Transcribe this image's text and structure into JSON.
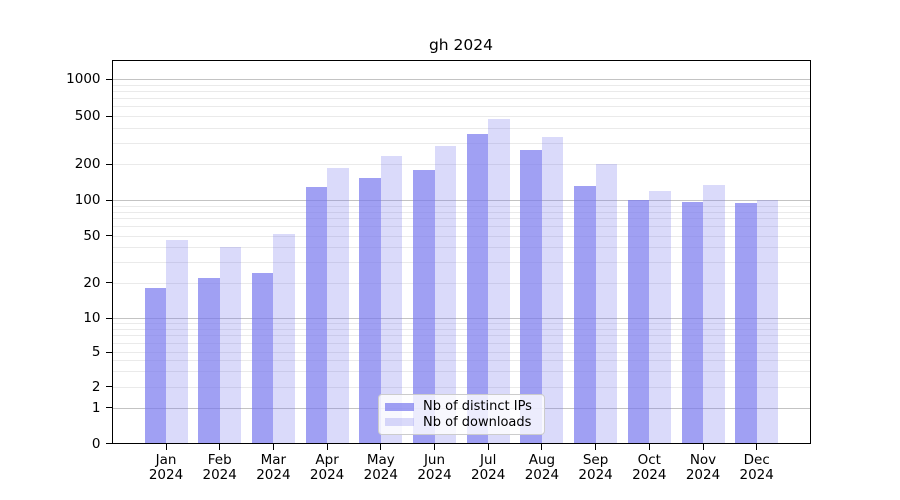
{
  "title": "gh 2024",
  "colors": {
    "background": "#ffffff",
    "bar_base": "#7777ee",
    "bar_dark_fill": "rgba(119,119,238,0.70)",
    "bar_light_fill": "rgba(119,119,238,0.27)",
    "grid_major": "#c3c3c3",
    "grid_minor": "#eaeaea",
    "spine": "#000000",
    "legend_bg": "rgba(255,255,255,0.8)",
    "legend_border": "#cccccc"
  },
  "legend": {
    "items": [
      {
        "label": "Nb of distinct IPs",
        "swatch": "dark"
      },
      {
        "label": "Nb of downloads",
        "swatch": "light"
      }
    ]
  },
  "chart_data": {
    "type": "bar",
    "title": "gh 2024",
    "categories": [
      "Jan 2024",
      "Feb 2024",
      "Mar 2024",
      "Apr 2024",
      "May 2024",
      "Jun 2024",
      "Jul 2024",
      "Aug 2024",
      "Sep 2024",
      "Oct 2024",
      "Nov 2024",
      "Dec 2024"
    ],
    "series": [
      {
        "name": "Nb of distinct IPs",
        "values": [
          18,
          22,
          24,
          130,
          152,
          180,
          355,
          260,
          132,
          100,
          96,
          95
        ]
      },
      {
        "name": "Nb of downloads",
        "values": [
          46,
          40,
          51,
          185,
          232,
          280,
          470,
          335,
          200,
          120,
          133,
          100
        ]
      }
    ],
    "xlabel": "",
    "ylabel": "",
    "yscale": "log-like (linear near zero)",
    "yticks": [
      0,
      1,
      2,
      5,
      10,
      20,
      50,
      100,
      200,
      500,
      1000
    ],
    "ylim": [
      0,
      1400
    ],
    "grid": "horizontal, major at powers of 10, faint minors",
    "legend_position": "lower center"
  }
}
